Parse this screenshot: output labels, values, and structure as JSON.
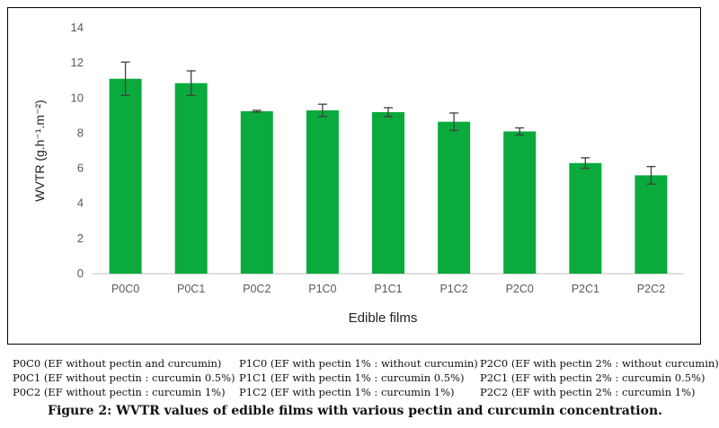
{
  "chart_data": {
    "type": "bar",
    "categories": [
      "P0C0",
      "P0C1",
      "P0C2",
      "P1C0",
      "P1C1",
      "P1C2",
      "P2C0",
      "P2C1",
      "P2C2"
    ],
    "values": [
      11.1,
      10.85,
      9.25,
      9.3,
      9.2,
      8.65,
      8.1,
      6.3,
      5.6
    ],
    "errors": [
      0.95,
      0.7,
      0.05,
      0.35,
      0.25,
      0.5,
      0.2,
      0.3,
      0.5
    ],
    "ylim": [
      0,
      14
    ],
    "yticks": [
      0,
      2,
      4,
      6,
      8,
      10,
      12,
      14
    ],
    "ylabel": "WVTR (g.h⁻¹.m⁻²)",
    "xlabel": "Edible films",
    "bar_color": "#0aaa3c",
    "grid": false
  },
  "legend": {
    "col1": [
      "P0C0 (EF without pectin and curcumin)",
      "P0C1 (EF without pectin : curcumin 0.5%)",
      "P0C2 (EF without pectin : curcumin 1%)"
    ],
    "col2": [
      "P1C0 (EF with pectin 1% : without curcumin)",
      "P1C1 (EF with pectin 1% : curcumin 0.5%)",
      "P1C2 (EF with pectin 1% : curcumin 1%)"
    ],
    "col3": [
      "P2C0 (EF with pectin 2% : without curcumin)",
      "P2C1 (EF with pectin 2% : curcumin 0.5%)",
      "P2C2 (EF with pectin 2% : curcumin 1%)"
    ]
  },
  "caption": "Figure 2: WVTR values of edible films with various pectin and curcumin concentration."
}
